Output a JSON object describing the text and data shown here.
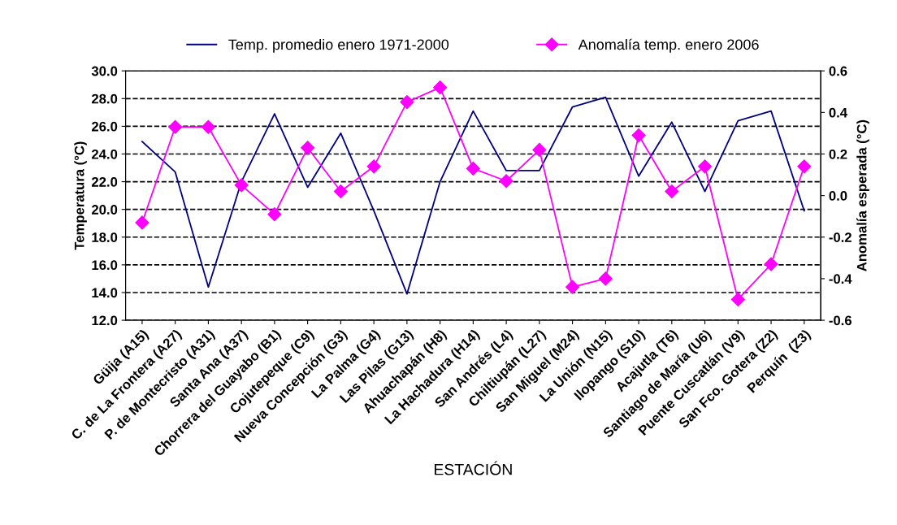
{
  "chart_data": {
    "type": "line",
    "xlabel": "ESTACIÓN",
    "ylabel": "Temperatura (°C)",
    "y2label": "Anomalía esperada (°C)",
    "categories": [
      "Güija (A15)",
      "C. de La Frontera (A27)",
      "P. de Montecristo (A31)",
      "Santa Ana (A37)",
      "Chorrera del Guayabo (B1)",
      "Cojutepeque (C9)",
      "Nueva Concepción (G3)",
      "La Palma (G4)",
      "Las Pilas (G13)",
      "Ahuachapán (H8)",
      "La Hachadura (H14)",
      "San Andrés (L4)",
      "Chiltiupán (L27)",
      "San Miguel (M24)",
      "La Unión (N15)",
      "Ilopango (S10)",
      "Acajutla (T6)",
      "Santiago de María (U6)",
      "Puente Cuscatlán (V9)",
      "San Fco. Gotera (Z2)",
      "Perquín  (Z3)"
    ],
    "series": [
      {
        "name": "Temp. promedio enero 1971-2000",
        "color": "#000080",
        "marker": "none",
        "values": [
          24.9,
          22.7,
          14.4,
          22.0,
          26.9,
          21.6,
          25.5,
          19.9,
          13.9,
          22.0,
          27.1,
          22.8,
          22.8,
          27.4,
          28.1,
          22.4,
          26.3,
          21.3,
          26.4,
          27.1,
          19.9
        ]
      },
      {
        "name": "Anomalía temp. enero 2006",
        "color": "#ff00ff",
        "marker": "diamond",
        "axis": "y2",
        "values": [
          -0.13,
          0.33,
          0.33,
          0.05,
          -0.09,
          0.23,
          0.02,
          0.14,
          0.45,
          0.52,
          0.13,
          0.07,
          0.22,
          -0.44,
          -0.4,
          0.29,
          0.02,
          0.14,
          -0.5,
          -0.33,
          0.14
        ]
      }
    ],
    "ylim": [
      12.0,
      30.0
    ],
    "yticks": [
      {
        "value": 12,
        "label": "12.0"
      },
      {
        "value": 14,
        "label": "14.0"
      },
      {
        "value": 16,
        "label": "16.0"
      },
      {
        "value": 18,
        "label": "18.0"
      },
      {
        "value": 20,
        "label": "20.0"
      },
      {
        "value": 22,
        "label": "22.0"
      },
      {
        "value": 24,
        "label": "24.0"
      },
      {
        "value": 26,
        "label": "26.0"
      },
      {
        "value": 28,
        "label": "28.0"
      },
      {
        "value": 30,
        "label": "30.0"
      }
    ],
    "y2lim": [
      -0.6,
      0.6
    ],
    "y2ticks": [
      -0.6,
      -0.4,
      -0.2,
      {
        "value": 0,
        "label": "0.0"
      },
      0.2,
      0.4,
      0.6
    ],
    "grid": "y",
    "legend": "top"
  }
}
